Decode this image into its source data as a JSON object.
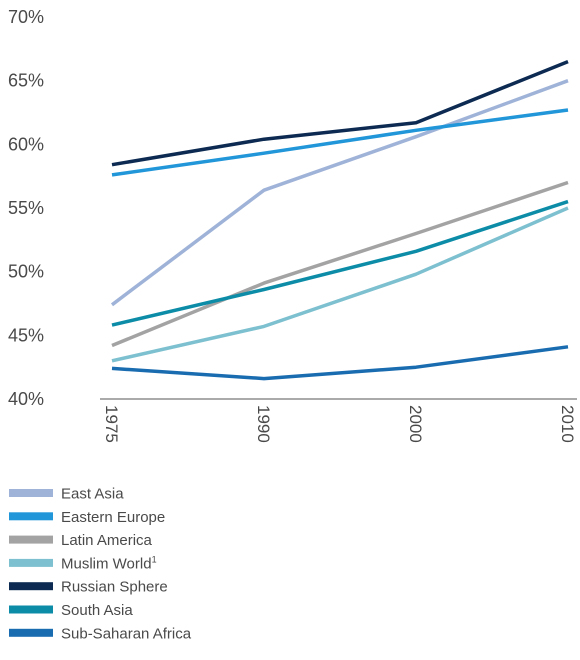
{
  "chart_data": {
    "type": "line",
    "title": "",
    "xlabel": "",
    "ylabel": "",
    "categories": [
      "1975",
      "1990",
      "2000",
      "2010"
    ],
    "y_ticks": [
      "40%",
      "45%",
      "50%",
      "55%",
      "60%",
      "65%",
      "70%"
    ],
    "ylim": [
      40,
      70
    ],
    "grid": false,
    "legend_position": "bottom-left",
    "series": [
      {
        "name": "East Asia",
        "color": "#9fb3d8",
        "values": [
          47.4,
          56.4,
          60.6,
          65.0
        ]
      },
      {
        "name": "Eastern Europe",
        "color": "#2196d8",
        "values": [
          57.6,
          59.3,
          61.1,
          62.7
        ]
      },
      {
        "name": "Latin America",
        "color": "#a3a3a3",
        "values": [
          44.2,
          49.1,
          53.0,
          57.0
        ]
      },
      {
        "name": "Muslim World",
        "sup": "1",
        "color": "#7dc0cf",
        "values": [
          43.0,
          45.7,
          49.8,
          55.0
        ]
      },
      {
        "name": "Russian Sphere",
        "color": "#0d2b52",
        "values": [
          58.4,
          60.4,
          61.7,
          66.5
        ]
      },
      {
        "name": "South Asia",
        "color": "#0d8ca8",
        "values": [
          45.8,
          48.6,
          51.6,
          55.5
        ]
      },
      {
        "name": "Sub-Saharan Africa",
        "color": "#1a6cb0",
        "values": [
          42.4,
          41.6,
          42.5,
          44.1
        ]
      }
    ]
  }
}
